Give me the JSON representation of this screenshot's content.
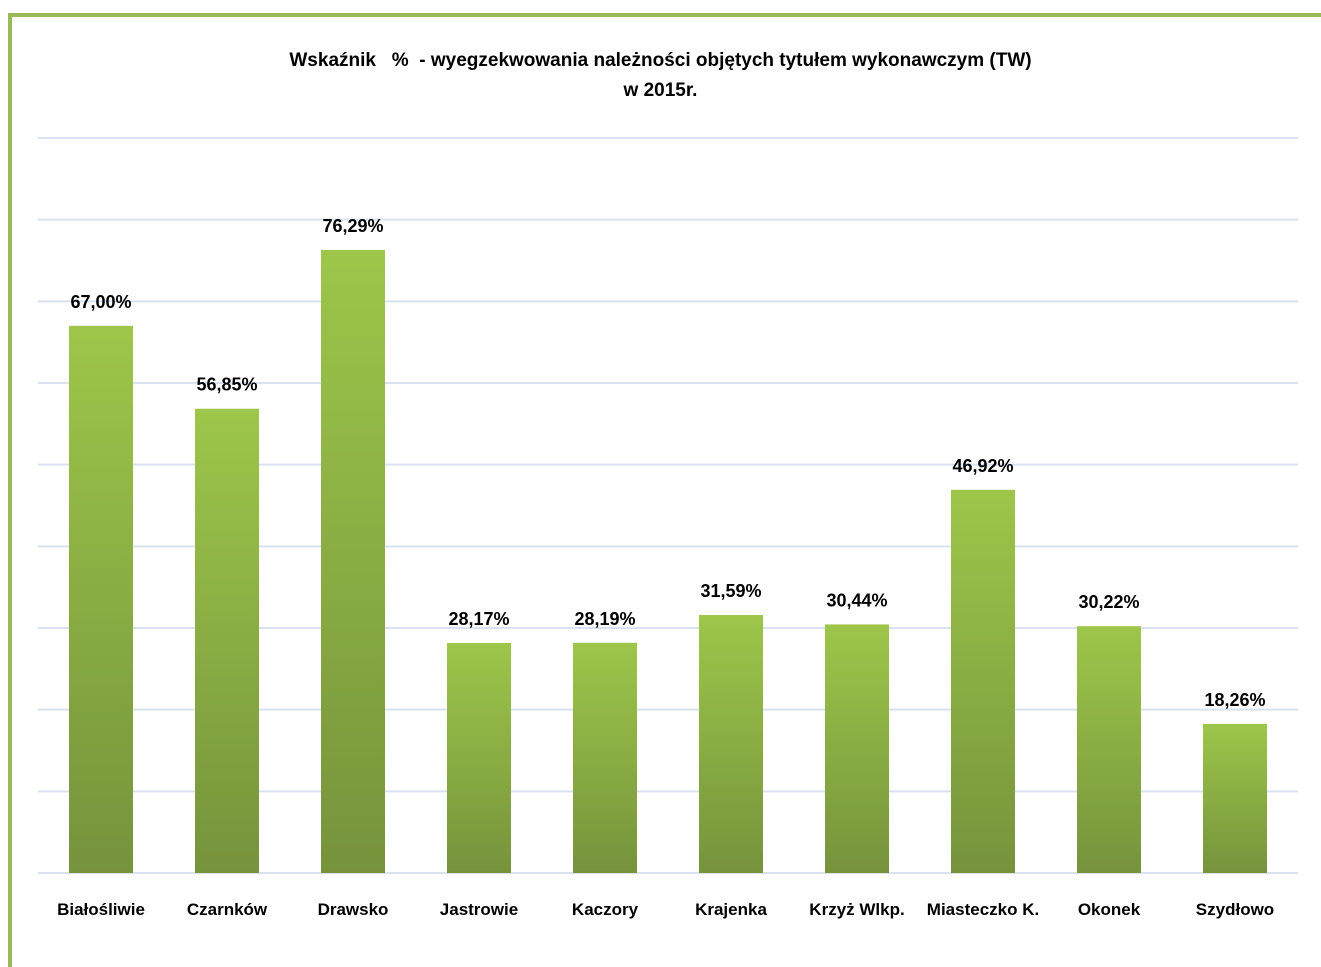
{
  "chart_data": {
    "type": "bar",
    "title": "Wskaźnik   %  - wyegzekwowania należności objętych tytułem wykonawczym (TW)\nw 2015r.",
    "categories": [
      "Białośliwie",
      "Czarnków",
      "Drawsko",
      "Jastrowie",
      "Kaczory",
      "Krajenka",
      "Krzyż Wlkp.",
      "Miasteczko K.",
      "Okonek",
      "Szydłowo"
    ],
    "values": [
      67.0,
      56.85,
      76.29,
      28.17,
      28.19,
      31.59,
      30.44,
      46.92,
      30.22,
      18.26
    ],
    "value_labels": [
      "67,00%",
      "56,85%",
      "76,29%",
      "28,17%",
      "28,19%",
      "31,59%",
      "30,44%",
      "46,92%",
      "30,22%",
      "18,26%"
    ],
    "color": "#9bbb59",
    "ylim": [
      0,
      90
    ],
    "yticks": [
      0,
      10,
      20,
      30,
      40,
      50,
      60,
      70,
      80,
      90
    ],
    "grid": true
  }
}
